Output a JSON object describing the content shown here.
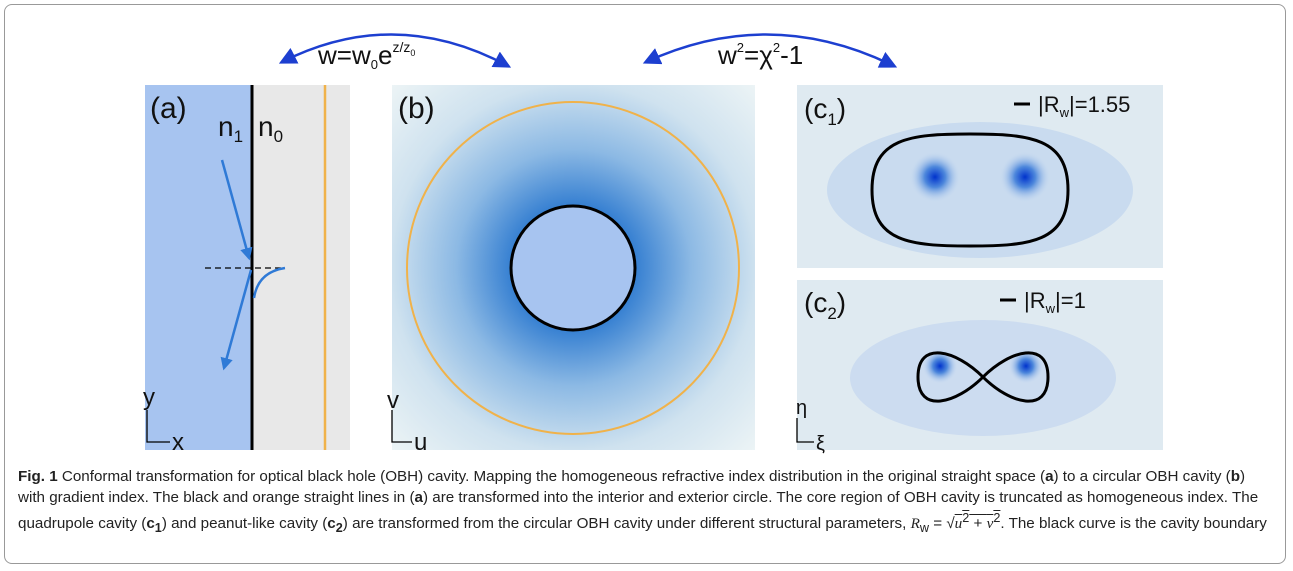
{
  "formula_left": {
    "base": "w=w",
    "sub": "0",
    "exp_base": "e",
    "sup": "z/z",
    "sup_sub": "0"
  },
  "formula_right": {
    "base": "w",
    "sup1": "2",
    "mid": "=χ",
    "sup2": "2",
    "tail": "-1"
  },
  "panel_a": {
    "label": "(a)",
    "n1": "n",
    "n1_sub": "1",
    "n0": "n",
    "n0_sub": "0",
    "axis_y": "y",
    "axis_x": "x"
  },
  "panel_b": {
    "label": "(b)",
    "axis_y": "v",
    "axis_x": "u"
  },
  "panel_c1": {
    "label": "(c",
    "label_sub": "1",
    "label_close": ")",
    "legend": "|R",
    "legend_sub": "w",
    "legend_tail": "|=1.55"
  },
  "panel_c2": {
    "label": "(c",
    "label_sub": "2",
    "label_close": ")",
    "legend": "|R",
    "legend_sub": "w",
    "legend_tail": "|=1",
    "axis_y": "η",
    "axis_x": "ξ"
  },
  "caption": {
    "parts": [
      "Fig. 1",
      " Conformal transformation for optical black hole (OBH) cavity. Mapping the homogeneous refractive index distribution in the original straight space (",
      "a",
      ") to a circular OBH cavity (",
      "b",
      ") with gradient index. The black and orange straight lines in (",
      "a",
      ") are transformed into the interior and exterior circle. The core region of OBH cavity is truncated as homogeneous index. The quadrupole cavity (",
      "c",
      "1",
      ") and peanut-like cavity (",
      "c",
      "2",
      ") are transformed from the circular OBH cavity under different structural parameters, ",
      "R",
      "w",
      " = ",
      "√",
      "u",
      "2",
      " + ",
      "v",
      "2",
      ". The black curve is the cavity boundary"
    ]
  }
}
